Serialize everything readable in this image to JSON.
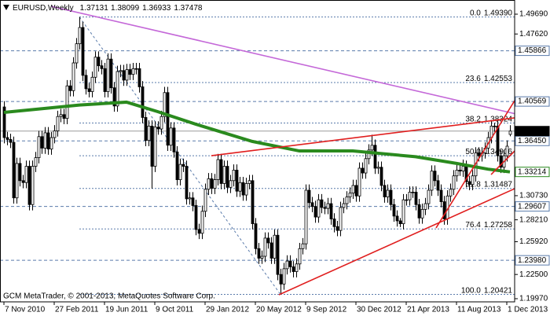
{
  "chart_data": {
    "type": "candlestick",
    "symbol": "EURUSD,Weekly",
    "copyright": "GCM MetaTrader, © 2001-2013, MetaQuotes Software Corp.",
    "categories": [
      "7 Nov 2010",
      null,
      null,
      null,
      null,
      null,
      null,
      null,
      null,
      null,
      null,
      null,
      null,
      null,
      null,
      null,
      "27 Feb 2011",
      null,
      null,
      null,
      null,
      null,
      null,
      null,
      null,
      null,
      null,
      null,
      null,
      null,
      null,
      null,
      "19 Jun 2011",
      null,
      null,
      null,
      null,
      null,
      null,
      null,
      null,
      null,
      null,
      null,
      null,
      null,
      null,
      null,
      "9 Oct 2011",
      null,
      null,
      null,
      null,
      null,
      null,
      null,
      null,
      null,
      null,
      null,
      null,
      null,
      null,
      null,
      "29 Jan 2012",
      null,
      null,
      null,
      null,
      null,
      null,
      null,
      null,
      null,
      null,
      null,
      null,
      null,
      null,
      null,
      "20 May 2012",
      null,
      null,
      null,
      null,
      null,
      null,
      null,
      null,
      null,
      null,
      null,
      null,
      null,
      null,
      null,
      "9 Sep 2012",
      null,
      null,
      null,
      null,
      null,
      null,
      null,
      null,
      null,
      null,
      null,
      null,
      null,
      null,
      null,
      "30 Dec 2012",
      null,
      null,
      null,
      null,
      null,
      null,
      null,
      null,
      null,
      null,
      null,
      null,
      null,
      null,
      null,
      "21 Apr 2013",
      null,
      null,
      null,
      null,
      null,
      null,
      null,
      null,
      null,
      null,
      null,
      null,
      null,
      null,
      null,
      "11 Aug 2013",
      null,
      null,
      null,
      null,
      null,
      null,
      null,
      null,
      null,
      null,
      null,
      null,
      null,
      null,
      null,
      "1 Dec 2013",
      null
    ],
    "open": [
      1.4,
      1.368,
      1.366,
      1.363,
      1.305,
      1.341,
      1.323,
      1.321,
      1.338,
      1.298,
      1.338,
      1.347,
      1.369,
      1.357,
      1.373,
      1.356,
      1.368,
      1.375,
      1.39,
      1.392,
      1.388,
      1.422,
      1.417,
      1.446,
      1.466,
      1.483,
      1.433,
      1.419,
      1.416,
      1.431,
      1.452,
      1.443,
      1.44,
      1.416,
      1.45,
      1.42,
      1.401,
      1.437,
      1.438,
      1.428,
      1.439,
      1.434,
      1.44,
      1.44,
      1.421,
      1.389,
      1.365,
      1.38,
      1.338,
      1.379,
      1.377,
      1.39,
      1.415,
      1.36,
      1.378,
      1.353,
      1.324,
      1.34,
      1.338,
      1.304,
      1.305,
      1.297,
      1.272,
      1.268,
      1.291,
      1.314,
      1.325,
      1.315,
      1.324,
      1.345,
      1.32,
      1.338,
      1.316,
      1.323,
      1.334,
      1.312,
      1.321,
      1.308,
      1.32,
      1.323,
      1.278,
      1.252,
      1.242,
      1.244,
      1.263,
      1.258,
      1.242,
      1.266,
      1.225,
      1.215,
      1.231,
      1.239,
      1.233,
      1.228,
      1.236,
      1.252,
      1.257,
      1.313,
      1.3,
      1.296,
      1.285,
      1.303,
      1.295,
      1.294,
      1.299,
      1.283,
      1.275,
      1.271,
      1.295,
      1.299,
      1.306,
      1.31,
      1.318,
      1.307,
      1.336,
      1.331,
      1.346,
      1.355,
      1.36,
      1.336,
      1.337,
      1.318,
      1.306,
      1.313,
      1.298,
      1.286,
      1.281,
      1.278,
      1.303,
      1.303,
      1.311,
      1.311,
      1.298,
      1.284,
      1.293,
      1.299,
      1.313,
      1.333,
      1.323,
      1.313,
      1.301,
      1.283,
      1.307,
      1.314,
      1.328,
      1.334,
      1.333,
      1.338,
      1.322,
      1.319,
      1.328,
      1.352,
      1.349,
      1.352,
      1.357,
      1.368,
      1.38,
      1.38,
      1.349,
      1.337,
      1.349,
      1.37131
    ],
    "high": [
      1.406,
      1.374,
      1.372,
      1.369,
      1.347,
      1.347,
      1.329,
      1.344,
      1.344,
      1.344,
      1.353,
      1.375,
      1.375,
      1.379,
      1.379,
      1.374,
      1.381,
      1.396,
      1.398,
      1.398,
      1.428,
      1.428,
      1.452,
      1.472,
      1.4939,
      1.489,
      1.439,
      1.425,
      1.437,
      1.458,
      1.458,
      1.449,
      1.446,
      1.456,
      1.456,
      1.426,
      1.443,
      1.444,
      1.444,
      1.445,
      1.445,
      1.446,
      1.446,
      1.446,
      1.427,
      1.395,
      1.386,
      1.386,
      1.385,
      1.385,
      1.396,
      1.421,
      1.421,
      1.384,
      1.384,
      1.359,
      1.346,
      1.346,
      1.344,
      1.311,
      1.311,
      1.303,
      1.278,
      1.297,
      1.32,
      1.331,
      1.331,
      1.33,
      1.351,
      1.351,
      1.344,
      1.344,
      1.329,
      1.34,
      1.34,
      1.327,
      1.327,
      1.326,
      1.329,
      1.329,
      1.284,
      1.258,
      1.25,
      1.269,
      1.269,
      1.264,
      1.272,
      1.272,
      1.231,
      1.237,
      1.245,
      1.245,
      1.239,
      1.242,
      1.258,
      1.263,
      1.319,
      1.319,
      1.306,
      1.302,
      1.309,
      1.309,
      1.301,
      1.305,
      1.305,
      1.289,
      1.281,
      1.301,
      1.305,
      1.312,
      1.316,
      1.324,
      1.324,
      1.342,
      1.342,
      1.352,
      1.361,
      1.371,
      1.366,
      1.343,
      1.343,
      1.324,
      1.319,
      1.319,
      1.304,
      1.292,
      1.284,
      1.309,
      1.309,
      1.317,
      1.317,
      1.317,
      1.304,
      1.299,
      1.305,
      1.319,
      1.339,
      1.339,
      1.329,
      1.319,
      1.307,
      1.313,
      1.32,
      1.334,
      1.34,
      1.339,
      1.345,
      1.344,
      1.328,
      1.334,
      1.358,
      1.358,
      1.358,
      1.363,
      1.374,
      1.386,
      1.3832,
      1.386,
      1.355,
      1.355,
      1.365,
      1.38099
    ],
    "low": [
      1.362,
      1.36,
      1.357,
      1.299,
      1.299,
      1.317,
      1.315,
      1.315,
      1.292,
      1.292,
      1.332,
      1.341,
      1.351,
      1.351,
      1.35,
      1.35,
      1.362,
      1.369,
      1.384,
      1.382,
      1.382,
      1.411,
      1.411,
      1.44,
      1.46,
      1.427,
      1.413,
      1.41,
      1.41,
      1.425,
      1.437,
      1.434,
      1.41,
      1.41,
      1.414,
      1.395,
      1.395,
      1.431,
      1.422,
      1.422,
      1.428,
      1.428,
      1.434,
      1.415,
      1.383,
      1.359,
      1.359,
      1.3146,
      1.332,
      1.371,
      1.371,
      1.384,
      1.354,
      1.354,
      1.347,
      1.318,
      1.318,
      1.332,
      1.298,
      1.298,
      1.291,
      1.266,
      1.262,
      1.262,
      1.285,
      1.308,
      1.309,
      1.309,
      1.318,
      1.314,
      1.314,
      1.31,
      1.31,
      1.317,
      1.306,
      1.306,
      1.302,
      1.302,
      1.314,
      1.272,
      1.246,
      1.236,
      1.236,
      1.238,
      1.252,
      1.236,
      1.236,
      1.219,
      1.2042,
      1.209,
      1.225,
      1.227,
      1.222,
      1.222,
      1.23,
      1.246,
      1.251,
      1.294,
      1.29,
      1.279,
      1.279,
      1.289,
      1.288,
      1.288,
      1.277,
      1.269,
      1.265,
      1.265,
      1.289,
      1.293,
      1.3,
      1.304,
      1.301,
      1.301,
      1.325,
      1.325,
      1.34,
      1.349,
      1.33,
      1.33,
      1.312,
      1.3,
      1.3,
      1.292,
      1.28,
      1.275,
      1.2745,
      1.272,
      1.297,
      1.297,
      1.305,
      1.292,
      1.278,
      1.278,
      1.287,
      1.293,
      1.307,
      1.317,
      1.307,
      1.295,
      1.277,
      1.277,
      1.301,
      1.308,
      1.322,
      1.328,
      1.327,
      1.316,
      1.313,
      1.313,
      1.322,
      1.343,
      1.343,
      1.346,
      1.351,
      1.362,
      1.374,
      1.343,
      1.331,
      1.331,
      1.343,
      1.36933
    ],
    "close": [
      1.368,
      1.366,
      1.363,
      1.305,
      1.341,
      1.323,
      1.321,
      1.338,
      1.298,
      1.338,
      1.347,
      1.369,
      1.357,
      1.373,
      1.356,
      1.368,
      1.375,
      1.39,
      1.392,
      1.388,
      1.422,
      1.417,
      1.446,
      1.466,
      1.483,
      1.433,
      1.419,
      1.416,
      1.431,
      1.452,
      1.443,
      1.44,
      1.416,
      1.45,
      1.42,
      1.401,
      1.437,
      1.438,
      1.428,
      1.439,
      1.434,
      1.44,
      1.44,
      1.421,
      1.389,
      1.365,
      1.38,
      1.338,
      1.379,
      1.377,
      1.39,
      1.415,
      1.36,
      1.378,
      1.353,
      1.324,
      1.34,
      1.338,
      1.304,
      1.305,
      1.297,
      1.272,
      1.268,
      1.291,
      1.314,
      1.325,
      1.315,
      1.324,
      1.345,
      1.32,
      1.338,
      1.316,
      1.323,
      1.334,
      1.312,
      1.321,
      1.308,
      1.32,
      1.323,
      1.278,
      1.252,
      1.242,
      1.244,
      1.263,
      1.258,
      1.242,
      1.266,
      1.225,
      1.215,
      1.231,
      1.239,
      1.233,
      1.228,
      1.236,
      1.252,
      1.257,
      1.313,
      1.3,
      1.296,
      1.285,
      1.303,
      1.295,
      1.294,
      1.299,
      1.283,
      1.275,
      1.271,
      1.295,
      1.299,
      1.306,
      1.31,
      1.318,
      1.307,
      1.336,
      1.331,
      1.346,
      1.355,
      1.36,
      1.336,
      1.337,
      1.318,
      1.306,
      1.313,
      1.298,
      1.286,
      1.281,
      1.278,
      1.303,
      1.303,
      1.311,
      1.311,
      1.298,
      1.284,
      1.293,
      1.299,
      1.313,
      1.333,
      1.323,
      1.313,
      1.301,
      1.283,
      1.307,
      1.314,
      1.328,
      1.334,
      1.333,
      1.338,
      1.322,
      1.319,
      1.328,
      1.352,
      1.349,
      1.352,
      1.357,
      1.368,
      1.38,
      1.38,
      1.349,
      1.337,
      1.349,
      1.359,
      1.37478
    ],
    "color_up": "#ffffff",
    "color_down": "#000000",
    "color_outline": "#000000",
    "ylim": [
      1.1964,
      1.5117
    ],
    "yticks": [
      {
        "value": 1.4969,
        "label": "1.49690"
      },
      {
        "value": 1.4762,
        "label": "1.47620"
      },
      {
        "value": 1.3073,
        "label": "1.30730"
      },
      {
        "value": 1.2821,
        "label": "1.28210"
      },
      {
        "value": 1.2592,
        "label": "1.25920"
      },
      {
        "value": 1.225,
        "label": "1.22500"
      },
      {
        "value": 1.1997,
        "label": "1.19970"
      }
    ],
    "ma": {
      "color": "#2a8a1e",
      "x": [
        0,
        24,
        39,
        49,
        61,
        79,
        94,
        111,
        131,
        144,
        154,
        161
      ],
      "values": [
        1.3943,
        1.402,
        1.405,
        1.395,
        1.382,
        1.364,
        1.354,
        1.354,
        1.348,
        1.341,
        1.335,
        1.33214
      ]
    },
    "trendlines": [
      {
        "color": "#c468d8",
        "x": [
          15,
          162.5
        ],
        "values": [
          1.5051,
          1.393
        ]
      },
      {
        "color": "#e01e1e",
        "x": [
          66,
          162.5
        ],
        "values": [
          1.3491,
          1.3886
        ]
      },
      {
        "color": "#e01e1e",
        "x": [
          87.5,
          162.5
        ],
        "values": [
          1.2038,
          1.3146
        ]
      },
      {
        "color": "#e01e1e",
        "x": [
          137.5,
          162.5
        ],
        "values": [
          1.2736,
          1.4066
        ]
      },
      {
        "color": "#e01e1e",
        "x": [
          155,
          162.5
        ],
        "values": [
          1.3294,
          1.354
        ]
      }
    ],
    "fibo": {
      "color": "#5a7bab",
      "x": [
        24,
        88
      ],
      "levels": [
        {
          "pct": {
            "value": 0,
            "label": "0.0"
          },
          "price": {
            "value": 1.4939,
            "label": "1.49390"
          }
        },
        {
          "pct": 23.6,
          "price": 1.42553
        },
        {
          "pct": 38.2,
          "price": 1.38324
        },
        {
          "pct": {
            "value": 50,
            "label": "50.0"
          },
          "price": 1.34906
        },
        {
          "pct": 61.8,
          "price": 1.31487
        },
        {
          "pct": 76.4,
          "price": 1.27258
        },
        {
          "pct": {
            "value": 100,
            "label": "100.0"
          },
          "price": 1.20421
        }
      ]
    },
    "levels": {
      "color": "#5a7bab",
      "values": [
        1.45866,
        1.40569,
        {
          "value": 1.3645,
          "label": "1.36450"
        },
        1.29607,
        {
          "value": 1.2398,
          "label": "1.23980"
        }
      ]
    },
    "price_line_color": "#9a9a9a"
  }
}
